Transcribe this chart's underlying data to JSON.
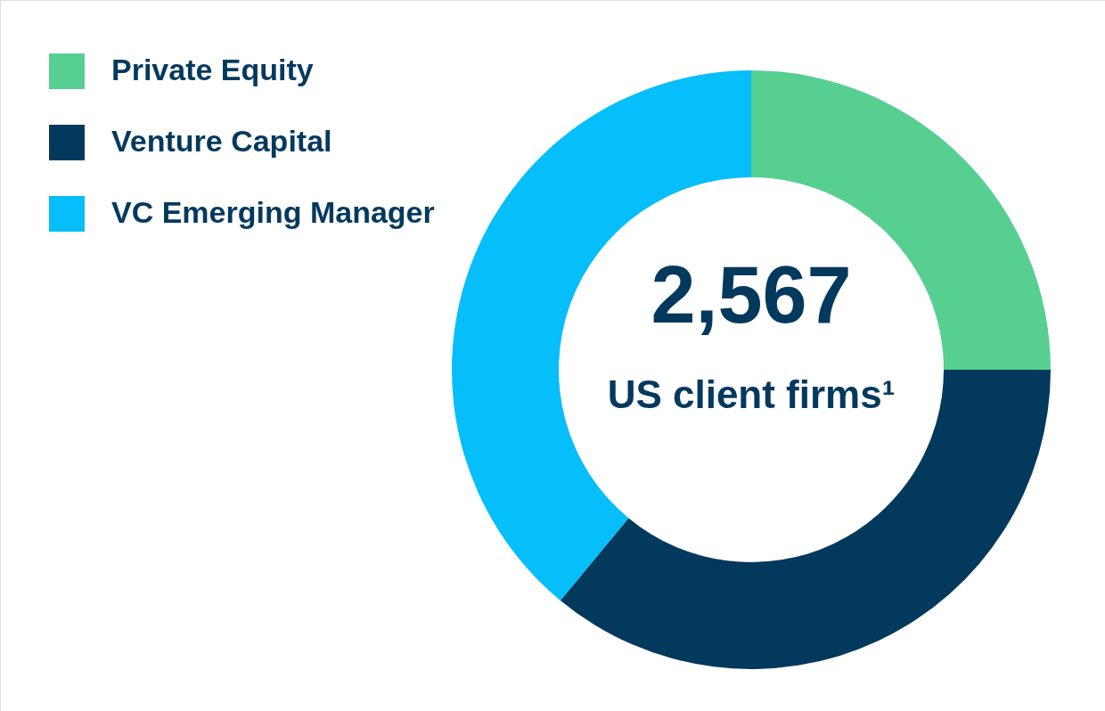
{
  "chart_data": {
    "type": "donut",
    "categories": [
      "Private Equity",
      "Venture Capital",
      "VC Emerging Manager"
    ],
    "values": [
      25,
      36,
      39
    ],
    "colors": [
      "#57cf91",
      "#04395e",
      "#05befa"
    ],
    "legend": "top left",
    "annotations": [
      "2,567",
      "US client firms¹"
    ]
  }
}
